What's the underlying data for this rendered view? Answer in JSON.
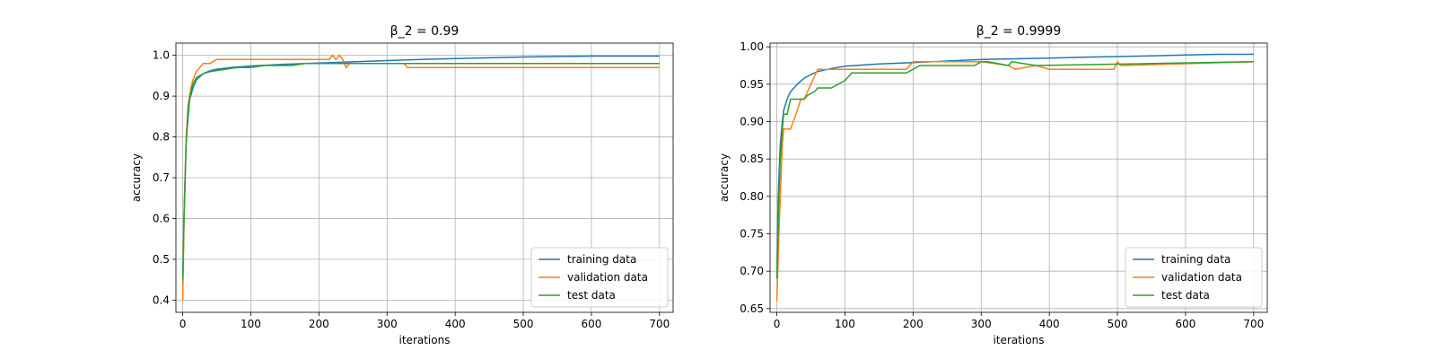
{
  "chart_data": [
    {
      "type": "line",
      "title": "β_2 = 0.99",
      "xlabel": "iterations",
      "ylabel": "accuracy",
      "xlim": [
        -10,
        720
      ],
      "ylim": [
        0.37,
        1.03
      ],
      "xticks": [
        0,
        100,
        200,
        300,
        400,
        500,
        600,
        700
      ],
      "yticks": [
        0.4,
        0.5,
        0.6,
        0.7,
        0.8,
        0.9,
        1.0
      ],
      "ytick_labels": [
        "0.4",
        "0.5",
        "0.6",
        "0.7",
        "0.8",
        "0.9",
        "1.0"
      ],
      "grid": true,
      "legend_position": "lower-right",
      "series": [
        {
          "name": "training data",
          "color": "#1f77b4",
          "x": [
            0,
            2,
            5,
            10,
            15,
            20,
            30,
            40,
            50,
            70,
            100,
            150,
            200,
            250,
            300,
            350,
            400,
            450,
            500,
            550,
            600,
            650,
            700
          ],
          "y": [
            0.44,
            0.62,
            0.79,
            0.89,
            0.92,
            0.94,
            0.955,
            0.962,
            0.966,
            0.97,
            0.974,
            0.978,
            0.981,
            0.984,
            0.987,
            0.99,
            0.992,
            0.994,
            0.996,
            0.997,
            0.998,
            0.998,
            0.998
          ]
        },
        {
          "name": "validation data",
          "color": "#ff7f0e",
          "x": [
            0,
            2,
            5,
            8,
            10,
            12,
            15,
            20,
            25,
            30,
            40,
            50,
            60,
            215,
            220,
            225,
            230,
            235,
            240,
            245,
            325,
            330,
            700
          ],
          "y": [
            0.4,
            0.6,
            0.8,
            0.88,
            0.9,
            0.92,
            0.94,
            0.96,
            0.97,
            0.98,
            0.98,
            0.99,
            0.99,
            0.99,
            1.0,
            0.99,
            1.0,
            0.99,
            0.97,
            0.98,
            0.98,
            0.97,
            0.97
          ]
        },
        {
          "name": "test data",
          "color": "#2ca02c",
          "x": [
            0,
            2,
            5,
            8,
            12,
            15,
            20,
            30,
            40,
            60,
            80,
            100,
            120,
            140,
            160,
            180,
            200,
            220,
            240,
            300,
            400,
            500,
            560,
            600,
            650,
            680,
            700
          ],
          "y": [
            0.45,
            0.6,
            0.78,
            0.87,
            0.91,
            0.93,
            0.945,
            0.955,
            0.96,
            0.965,
            0.97,
            0.97,
            0.975,
            0.975,
            0.975,
            0.98,
            0.98,
            0.98,
            0.98,
            0.98,
            0.98,
            0.98,
            0.98,
            0.98,
            0.98,
            0.98,
            0.98
          ]
        }
      ]
    },
    {
      "type": "line",
      "title": "β_2 = 0.9999",
      "xlabel": "iterations",
      "ylabel": "accuracy",
      "xlim": [
        -10,
        720
      ],
      "ylim": [
        0.645,
        1.005
      ],
      "xticks": [
        0,
        100,
        200,
        300,
        400,
        500,
        600,
        700
      ],
      "yticks": [
        0.65,
        0.7,
        0.75,
        0.8,
        0.85,
        0.9,
        0.95,
        1.0
      ],
      "ytick_labels": [
        "0.65",
        "0.70",
        "0.75",
        "0.80",
        "0.85",
        "0.90",
        "0.95",
        "1.00"
      ],
      "grid": true,
      "legend_position": "lower-right",
      "series": [
        {
          "name": "training data",
          "color": "#1f77b4",
          "x": [
            0,
            2,
            5,
            8,
            10,
            15,
            20,
            30,
            40,
            50,
            60,
            80,
            100,
            150,
            200,
            250,
            300,
            350,
            400,
            450,
            500,
            550,
            600,
            650,
            700
          ],
          "y": [
            0.69,
            0.8,
            0.87,
            0.9,
            0.915,
            0.93,
            0.94,
            0.95,
            0.958,
            0.963,
            0.967,
            0.971,
            0.974,
            0.977,
            0.979,
            0.981,
            0.983,
            0.984,
            0.985,
            0.986,
            0.987,
            0.988,
            0.989,
            0.99,
            0.99
          ]
        },
        {
          "name": "validation data",
          "color": "#ff7f0e",
          "x": [
            0,
            3,
            5,
            8,
            10,
            15,
            20,
            30,
            35,
            40,
            50,
            55,
            60,
            100,
            190,
            200,
            300,
            340,
            350,
            380,
            400,
            495,
            500,
            505,
            700
          ],
          "y": [
            0.66,
            0.75,
            0.8,
            0.87,
            0.89,
            0.89,
            0.89,
            0.915,
            0.93,
            0.93,
            0.95,
            0.96,
            0.97,
            0.97,
            0.97,
            0.98,
            0.98,
            0.975,
            0.97,
            0.975,
            0.97,
            0.97,
            0.98,
            0.975,
            0.98
          ]
        },
        {
          "name": "test data",
          "color": "#2ca02c",
          "x": [
            0,
            3,
            5,
            8,
            10,
            15,
            20,
            30,
            40,
            45,
            55,
            60,
            80,
            100,
            110,
            120,
            190,
            200,
            210,
            250,
            290,
            300,
            310,
            340,
            345,
            380,
            700
          ],
          "y": [
            0.69,
            0.8,
            0.85,
            0.89,
            0.91,
            0.91,
            0.93,
            0.93,
            0.93,
            0.935,
            0.94,
            0.945,
            0.945,
            0.955,
            0.965,
            0.965,
            0.965,
            0.97,
            0.975,
            0.975,
            0.975,
            0.98,
            0.98,
            0.975,
            0.98,
            0.975,
            0.98
          ]
        }
      ]
    }
  ]
}
